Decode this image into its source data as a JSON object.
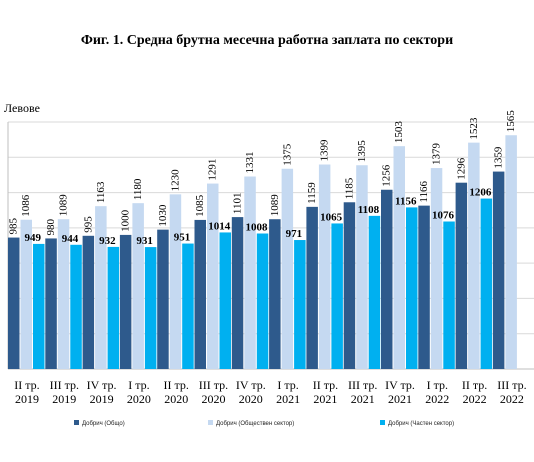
{
  "chart_data": {
    "type": "bar",
    "title": "Фиг. 1. Средна брутна месечна работна заплата по сектори",
    "ylabel": "Левове",
    "ylim": [
      0,
      1700
    ],
    "grid": true,
    "legend_position": "bottom",
    "categories": [
      {
        "line1": "II тр.",
        "line2": "2019"
      },
      {
        "line1": "III тр.",
        "line2": "2019"
      },
      {
        "line1": "IV тр.",
        "line2": "2019"
      },
      {
        "line1": "I тр.",
        "line2": "2020"
      },
      {
        "line1": "II тр.",
        "line2": "2020"
      },
      {
        "line1": "III тр.",
        "line2": "2020"
      },
      {
        "line1": "IV тр.",
        "line2": "2020"
      },
      {
        "line1": "I тр.",
        "line2": "2021"
      },
      {
        "line1": "II тр.",
        "line2": "2021"
      },
      {
        "line1": "III тр.",
        "line2": "2021"
      },
      {
        "line1": "IV тр.",
        "line2": "2021"
      },
      {
        "line1": "I тр.",
        "line2": "2022"
      },
      {
        "line1": "II тр.",
        "line2": "2022"
      },
      {
        "line1": "III тр.",
        "line2": "2022"
      }
    ],
    "series": [
      {
        "name": "Добрич (Общо)",
        "color": "#2e5a8c",
        "values": [
          985,
          980,
          995,
          1000,
          1030,
          1085,
          1101,
          1089,
          1159,
          1185,
          1256,
          1166,
          1296,
          1359
        ]
      },
      {
        "name": "Добрич (Обществен сектор)",
        "color": "#c5d9f1",
        "values": [
          1086,
          1089,
          1163,
          1180,
          1230,
          1291,
          1331,
          1375,
          1399,
          1395,
          1503,
          1379,
          1523,
          1565
        ]
      },
      {
        "name": "Добрич (Частен сектор)",
        "color": "#00b0f0",
        "values": [
          949,
          944,
          932,
          931,
          951,
          1014,
          1008,
          971,
          1065,
          1108,
          1156,
          1076,
          1206,
          null
        ]
      }
    ]
  }
}
